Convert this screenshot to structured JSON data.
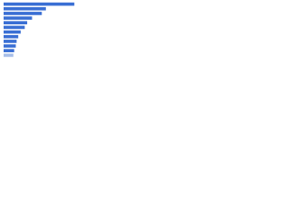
{
  "chart_data": {
    "type": "bar",
    "orientation": "horizontal",
    "categories": [
      null,
      null,
      null,
      null,
      null,
      null,
      null,
      null,
      null,
      null,
      null,
      null
    ],
    "values": [
      87,
      52,
      47,
      35,
      29,
      26,
      21,
      18,
      16,
      15,
      13,
      12
    ],
    "colors": [
      "#3a6fd4",
      "#3a6fd4",
      "#3a6fd4",
      "#3a6fd4",
      "#3a6fd4",
      "#3a6fd4",
      "#3a6fd4",
      "#3a6fd4",
      "#3a6fd4",
      "#3a6fd4",
      "#3a6fd4",
      "#a8bfe9"
    ],
    "xlim": [
      0,
      100
    ]
  }
}
